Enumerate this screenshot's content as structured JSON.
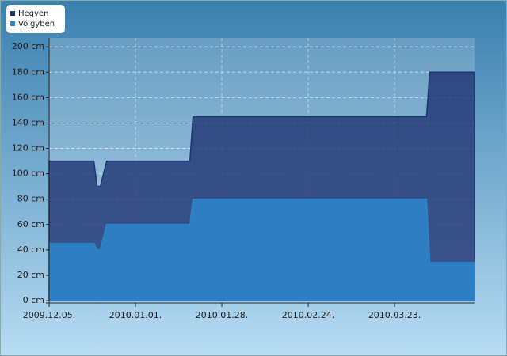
{
  "chart_data": {
    "type": "area",
    "x": [
      "2009-12-05",
      "2009-12-19",
      "2009-12-20",
      "2009-12-21",
      "2009-12-23",
      "2010-01-18",
      "2010-01-19",
      "2010-04-02",
      "2010-04-03",
      "2010-04-17"
    ],
    "series": [
      {
        "name": "Hegyen",
        "color": "#1e3372",
        "values": [
          110,
          110,
          90,
          90,
          110,
          110,
          145,
          145,
          180,
          180
        ]
      },
      {
        "name": "Völgyben",
        "color": "#2b86cc",
        "values": [
          45,
          45,
          40,
          40,
          60,
          60,
          80,
          80,
          30,
          30
        ]
      }
    ],
    "xlim": [
      "2009-12-05",
      "2010-04-17"
    ],
    "xticks": [
      {
        "value": "2009-12-05",
        "label": "2009.12.05."
      },
      {
        "value": "2010-01-01",
        "label": "2010.01.01."
      },
      {
        "value": "2010-01-28",
        "label": "2010.01.28."
      },
      {
        "value": "2010-02-24",
        "label": "2010.02.24."
      },
      {
        "value": "2010-03-23",
        "label": "2010.03.23."
      }
    ],
    "ylim": [
      0,
      207
    ],
    "yticks": [
      {
        "value": 0,
        "label": "0 cm"
      },
      {
        "value": 20,
        "label": "20 cm"
      },
      {
        "value": 40,
        "label": "40 cm"
      },
      {
        "value": 60,
        "label": "60 cm"
      },
      {
        "value": 80,
        "label": "80 cm"
      },
      {
        "value": 100,
        "label": "100 cm"
      },
      {
        "value": 120,
        "label": "120 cm"
      },
      {
        "value": 140,
        "label": "140 cm"
      },
      {
        "value": 160,
        "label": "160 cm"
      },
      {
        "value": 180,
        "label": "180 cm"
      },
      {
        "value": 200,
        "label": "200 cm"
      }
    ],
    "grid": true,
    "legend": "top-left"
  }
}
